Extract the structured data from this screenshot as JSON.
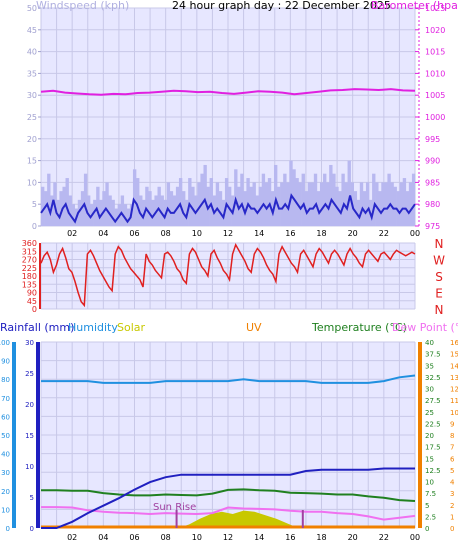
{
  "title": "24 hour graph day : 22 December 2025",
  "colors": {
    "plot_bg": "#e7e7ff",
    "grid": "#c8c8e8",
    "wind_avg": "#2828c8",
    "wind_gust": "#b8b8f0",
    "barometer": "#e020e0",
    "direction": "#e02020",
    "rainfall": "#2020c0",
    "humidity": "#2090e0",
    "solar": "#c8c800",
    "uv": "#f08000",
    "temperature": "#208020",
    "dewpoint": "#f070f0",
    "sunmarker": "#a040a0"
  },
  "chart_data": [
    {
      "type": "line",
      "title": "",
      "ylabel_left": "Windspeed (kph)",
      "ylabel_right": "Barometer (hpa)",
      "x_ticks": [
        "02",
        "04",
        "06",
        "08",
        "10",
        "12",
        "14",
        "16",
        "18",
        "20",
        "22",
        "00"
      ],
      "ylim_left": [
        0,
        50
      ],
      "yticks_left": [
        0,
        5,
        10,
        15,
        20,
        25,
        30,
        35,
        40,
        45,
        50
      ],
      "ylim_right": [
        975,
        1025
      ],
      "yticks_right": [
        975,
        980,
        985,
        990,
        995,
        1000,
        1005,
        1010,
        1015,
        1020,
        1025
      ],
      "grid": true,
      "series": [
        {
          "name": "Windspeed",
          "axis": "left",
          "values": [
            3,
            4,
            5,
            3,
            6,
            3,
            2,
            4,
            5,
            3,
            2,
            1,
            3,
            4,
            5,
            3,
            2,
            3,
            4,
            2,
            3,
            4,
            3,
            2,
            1,
            2,
            3,
            2,
            1,
            2,
            6,
            5,
            3,
            2,
            4,
            3,
            2,
            3,
            4,
            3,
            2,
            4,
            3,
            3,
            4,
            5,
            3,
            2,
            5,
            4,
            3,
            4,
            5,
            6,
            4,
            5,
            3,
            4,
            3,
            2,
            5,
            4,
            3,
            6,
            4,
            5,
            3,
            5,
            4,
            4,
            3,
            4,
            5,
            4,
            5,
            3,
            6,
            4,
            4,
            5,
            4,
            7,
            6,
            5,
            4,
            5,
            3,
            4,
            4,
            5,
            3,
            4,
            5,
            4,
            6,
            5,
            4,
            3,
            5,
            4,
            7,
            4,
            3,
            2,
            4,
            3,
            4,
            2,
            5,
            4,
            3,
            4,
            4,
            5,
            4,
            4,
            3,
            4,
            4,
            3,
            4,
            5
          ]
        },
        {
          "name": "Gust",
          "axis": "left",
          "values": [
            9,
            8,
            12,
            7,
            10,
            6,
            8,
            9,
            11,
            7,
            5,
            4,
            6,
            8,
            12,
            7,
            5,
            6,
            9,
            6,
            8,
            10,
            7,
            6,
            4,
            5,
            7,
            5,
            4,
            5,
            13,
            11,
            7,
            6,
            9,
            8,
            6,
            7,
            9,
            7,
            6,
            10,
            8,
            7,
            9,
            11,
            8,
            6,
            11,
            9,
            7,
            10,
            12,
            14,
            9,
            11,
            7,
            10,
            8,
            6,
            11,
            9,
            7,
            13,
            9,
            12,
            8,
            11,
            9,
            10,
            7,
            9,
            12,
            10,
            11,
            8,
            14,
            9,
            10,
            12,
            10,
            15,
            13,
            11,
            10,
            12,
            8,
            10,
            10,
            12,
            8,
            10,
            12,
            10,
            14,
            12,
            9,
            8,
            12,
            10,
            15,
            10,
            8,
            6,
            10,
            8,
            10,
            6,
            12,
            10,
            8,
            10,
            10,
            12,
            10,
            9,
            8,
            10,
            11,
            8,
            10,
            12
          ]
        },
        {
          "name": "Barometer",
          "axis": "right",
          "values": [
            1005.8,
            1006.0,
            1005.6,
            1005.4,
            1005.2,
            1005.1,
            1005.3,
            1005.2,
            1005.5,
            1005.6,
            1005.8,
            1006.0,
            1005.9,
            1005.7,
            1005.8,
            1005.5,
            1005.3,
            1005.6,
            1005.9,
            1005.8,
            1005.6,
            1005.2,
            1005.5,
            1005.8,
            1006.1,
            1006.2,
            1006.4,
            1006.3,
            1006.2,
            1006.4,
            1006.1,
            1006.0
          ]
        }
      ]
    },
    {
      "type": "scatter",
      "title": "",
      "ylabel_left": "",
      "ylim_left": [
        0,
        360
      ],
      "yticks_left": [
        0,
        45,
        90,
        135,
        180,
        225,
        270,
        315,
        360
      ],
      "right_labels": [
        "N",
        "W",
        "S",
        "E",
        "N"
      ],
      "series": [
        {
          "name": "Wind Direction",
          "values": [
            250,
            290,
            310,
            270,
            200,
            240,
            300,
            330,
            280,
            220,
            200,
            150,
            90,
            40,
            20,
            300,
            320,
            290,
            250,
            210,
            180,
            150,
            120,
            100,
            300,
            340,
            320,
            280,
            250,
            220,
            200,
            180,
            160,
            120,
            300,
            260,
            240,
            210,
            190,
            170,
            300,
            310,
            290,
            260,
            220,
            200,
            160,
            140,
            300,
            330,
            310,
            270,
            230,
            210,
            180,
            300,
            320,
            280,
            250,
            210,
            190,
            160,
            300,
            350,
            320,
            290,
            260,
            220,
            200,
            300,
            330,
            310,
            280,
            240,
            210,
            190,
            150,
            300,
            340,
            310,
            280,
            250,
            230,
            200,
            300,
            320,
            290,
            260,
            230,
            300,
            330,
            310,
            280,
            250,
            300,
            320,
            300,
            270,
            240,
            300,
            330,
            300,
            280,
            250,
            230,
            300,
            320,
            300,
            280,
            260,
            300,
            310,
            290,
            270,
            300,
            320,
            310,
            300,
            290,
            300,
            310,
            300
          ]
        }
      ]
    },
    {
      "type": "line",
      "title": "",
      "legend": [
        "Rainfall (mm)",
        "Humidity",
        "Solar",
        "UV",
        "Temperature (°C)",
        "Dew Point (°C)"
      ],
      "axes": {
        "humidity": {
          "ylim": [
            0,
            100
          ],
          "yticks": [
            0,
            10,
            20,
            30,
            40,
            50,
            60,
            70,
            80,
            90,
            100
          ]
        },
        "rainfall": {
          "ylim": [
            0,
            30
          ],
          "yticks": [
            0,
            5,
            10,
            15,
            20,
            25,
            30
          ]
        },
        "temperature": {
          "ylim": [
            0,
            40
          ],
          "yticks": [
            0,
            2.5,
            5,
            7.5,
            10,
            12.5,
            15,
            17.5,
            20,
            22.5,
            25,
            27.5,
            30,
            32.5,
            35,
            37.5,
            40
          ],
          "ytick_labels": [
            "0",
            "2.5",
            "5",
            "7.5",
            "10",
            "12.5",
            "15",
            "17.5",
            "20",
            "22.5",
            "25",
            "27.5",
            "30",
            "32.5",
            "35",
            "37.5",
            "40"
          ]
        },
        "uv": {
          "ylim": [
            0,
            16
          ],
          "yticks": [
            0,
            1,
            2,
            3,
            4,
            5,
            6,
            7,
            8,
            9,
            10,
            11,
            12,
            13,
            14,
            15,
            16
          ]
        }
      },
      "annotations": [
        "Sun Rise"
      ],
      "sunrise_hour": 8.7,
      "sunset_hour": 16.8,
      "series": [
        {
          "name": "Humidity",
          "axis": "humidity",
          "x": [
            0,
            1,
            2,
            3,
            4,
            5,
            6,
            7,
            8,
            9,
            10,
            11,
            12,
            13,
            14,
            15,
            16,
            17,
            18,
            19,
            20,
            21,
            22,
            23,
            24
          ],
          "values": [
            79,
            79,
            79,
            79,
            78,
            78,
            78,
            78,
            79,
            79,
            79,
            79,
            79,
            80,
            79,
            79,
            79,
            79,
            78,
            78,
            78,
            78,
            79,
            81,
            82
          ]
        },
        {
          "name": "Rainfall",
          "axis": "rainfall",
          "x": [
            0,
            1,
            2,
            3,
            4,
            5,
            6,
            7,
            8,
            9,
            10,
            11,
            12,
            13,
            14,
            15,
            16,
            17,
            18,
            19,
            20,
            21,
            22,
            23,
            24
          ],
          "values": [
            0,
            0,
            1,
            2.4,
            3.6,
            4.8,
            6.2,
            7.4,
            8.2,
            8.6,
            8.6,
            8.6,
            8.6,
            8.6,
            8.6,
            8.6,
            8.6,
            9.2,
            9.4,
            9.4,
            9.4,
            9.4,
            9.6,
            9.6,
            9.6
          ]
        },
        {
          "name": "Temperature",
          "axis": "temperature",
          "x": [
            0,
            1,
            2,
            3,
            4,
            5,
            6,
            7,
            8,
            9,
            10,
            11,
            12,
            13,
            14,
            15,
            16,
            17,
            18,
            19,
            20,
            21,
            22,
            23,
            24
          ],
          "values": [
            8.1,
            8.1,
            8.0,
            8.0,
            7.5,
            7.2,
            7.0,
            7.0,
            7.2,
            7.1,
            7.0,
            7.4,
            8.2,
            8.3,
            8.1,
            8.0,
            7.6,
            7.5,
            7.4,
            7.2,
            7.2,
            6.8,
            6.5,
            6.0,
            5.8
          ]
        },
        {
          "name": "Dew Point",
          "axis": "temperature",
          "x": [
            0,
            1,
            2,
            3,
            4,
            5,
            6,
            7,
            8,
            9,
            10,
            11,
            12,
            13,
            14,
            15,
            16,
            17,
            18,
            19,
            20,
            21,
            22,
            23,
            24
          ],
          "values": [
            4.5,
            4.5,
            4.4,
            3.8,
            3.5,
            3.3,
            3.2,
            3.0,
            3.2,
            3.1,
            3.0,
            3.2,
            4.4,
            4.2,
            4.1,
            4.0,
            3.7,
            3.5,
            3.5,
            3.2,
            3.0,
            2.5,
            1.8,
            2.2,
            2.6
          ]
        },
        {
          "name": "Solar",
          "axis": "uv",
          "x": [
            8.8,
            9.5,
            10.2,
            10.9,
            11.6,
            12.3,
            13,
            13.7,
            14.4,
            15.1,
            15.8,
            16.5
          ],
          "values": [
            0,
            0.3,
            0.8,
            1.2,
            1.4,
            1.2,
            1.5,
            1.4,
            1.1,
            0.8,
            0.4,
            0
          ]
        },
        {
          "name": "UV",
          "axis": "uv",
          "x": [
            0,
            24
          ],
          "values": [
            0,
            0
          ]
        }
      ]
    }
  ]
}
